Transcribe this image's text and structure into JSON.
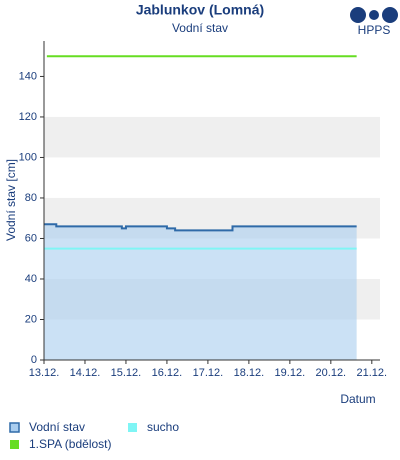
{
  "chart_data": {
    "type": "line",
    "title": "Jablunkov (Lomná)",
    "subtitle": "Vodní stav",
    "logo": "HPPS",
    "y_label": "Vodní stav [cm]",
    "x_label": "Datum",
    "ylim": [
      0,
      157.5
    ],
    "yticks": [
      0,
      20,
      40,
      60,
      80,
      100,
      120,
      140
    ],
    "xlim": [
      0,
      8.2
    ],
    "xticks": [
      {
        "value": 0,
        "label": "13.12."
      },
      {
        "value": 1,
        "label": "14.12."
      },
      {
        "value": 2,
        "label": "15.12."
      },
      {
        "value": 3,
        "label": "16.12."
      },
      {
        "value": 4,
        "label": "17.12."
      },
      {
        "value": 5,
        "label": "18.12."
      },
      {
        "value": 6,
        "label": "19.12."
      },
      {
        "value": 7,
        "label": "20.12."
      },
      {
        "value": 8,
        "label": "21.12."
      }
    ],
    "grid": "bands",
    "band_color": "#efefef",
    "series": [
      {
        "name": "Vodní stav",
        "color": "#2f6aa8",
        "fill": "#a9cdef",
        "x": [
          0,
          0.3,
          0.3,
          1.9,
          1.9,
          2.0,
          2.0,
          3.0,
          3.0,
          3.2,
          3.2,
          3.7,
          3.7,
          4.6,
          4.6,
          7.63
        ],
        "values": [
          67,
          67,
          66,
          66,
          65,
          65,
          66,
          66,
          65,
          65,
          64,
          64,
          64,
          64,
          66,
          66
        ]
      },
      {
        "name": "sucho",
        "color": "#7ff5f5",
        "x": [
          0,
          7.63
        ],
        "values": [
          55,
          55
        ]
      },
      {
        "name": "1.SPA (bdělost)",
        "color": "#66dd22",
        "x": [
          0.07,
          7.63
        ],
        "values": [
          150,
          150
        ]
      }
    ]
  }
}
